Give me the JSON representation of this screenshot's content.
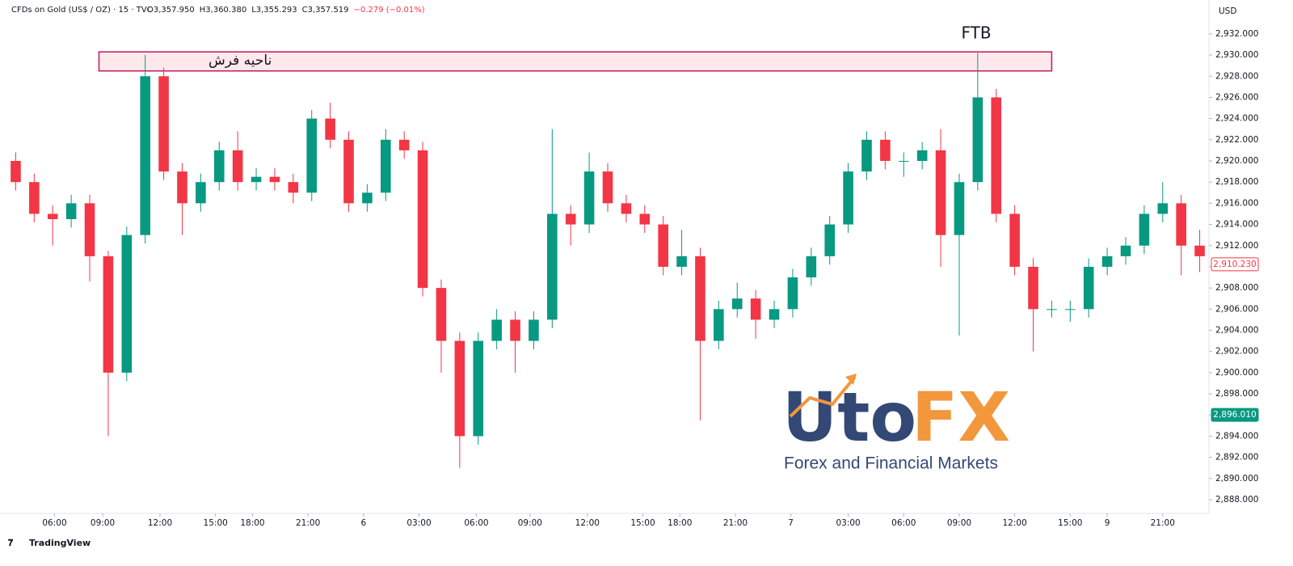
{
  "chart_data": {
    "type": "candlestick",
    "title": "CFDs on Gold (US$ / OZ) · 15 · TVC",
    "ohlc_header": [
      "O3,357.950",
      "H3,360.380",
      "L3,355.293",
      "C3,357.519",
      "−0.279 (−0.01%)"
    ],
    "y_unit": "USD",
    "up_color": "#089981",
    "down_color": "#f23645",
    "open": [
      2920,
      2918,
      2915,
      2914.5,
      2916,
      2911,
      2900,
      2913,
      2928,
      2919,
      2916,
      2918,
      2921,
      2918,
      2918.5,
      2918,
      2917,
      2924,
      2922,
      2916,
      2917,
      2922,
      2921,
      2908,
      2903,
      2894,
      2903,
      2905,
      2903,
      2905,
      2915,
      2914,
      2919,
      2916,
      2915,
      2914,
      2910,
      2911,
      2903,
      2906,
      2907,
      2905,
      2906,
      2909,
      2911,
      2914,
      2919,
      2922,
      2920,
      2920,
      2921,
      2913,
      2918,
      2926,
      2915,
      2910,
      2906,
      2906,
      2906,
      2910,
      2911,
      2912,
      2915,
      2916,
      2912
    ],
    "high": [
      2920.8,
      2918.8,
      2915.8,
      2916.8,
      2916.8,
      2911.5,
      2913.8,
      2930,
      2928.8,
      2919.8,
      2918.8,
      2921.8,
      2922.8,
      2919.3,
      2919.3,
      2918.8,
      2924.8,
      2925.5,
      2922.8,
      2917.8,
      2923,
      2922.8,
      2921.8,
      2908.8,
      2903.8,
      2903.8,
      2906,
      2905.8,
      2905.8,
      2923,
      2915.8,
      2920.8,
      2919.8,
      2916.8,
      2915.8,
      2914.8,
      2913.5,
      2911.8,
      2906.8,
      2908.5,
      2907.8,
      2906.8,
      2909.8,
      2911.8,
      2914.8,
      2919.8,
      2922.8,
      2922.8,
      2920.8,
      2921.8,
      2923,
      2918.8,
      2930.2,
      2926.8,
      2915.8,
      2910.8,
      2906.8,
      2906.8,
      2910.8,
      2911.8,
      2912.8,
      2915.8,
      2918,
      2916.8,
      2913.5
    ],
    "low": [
      2917.2,
      2914.2,
      2912,
      2913.7,
      2908.6,
      2894,
      2899.2,
      2912.2,
      2918.2,
      2913,
      2915.2,
      2917.2,
      2917.2,
      2917.2,
      2917.2,
      2916,
      2916.2,
      2921.2,
      2915.2,
      2915.2,
      2916.2,
      2920.2,
      2907.2,
      2900,
      2891,
      2893.2,
      2902.2,
      2900,
      2902.2,
      2904.2,
      2912,
      2913.2,
      2915.2,
      2914.2,
      2913.2,
      2909.2,
      2909.2,
      2895.5,
      2902.2,
      2905.2,
      2903.2,
      2904.2,
      2905.2,
      2908.2,
      2910.2,
      2913.2,
      2918.2,
      2919.2,
      2918.5,
      2919.2,
      2910,
      2903.5,
      2917.2,
      2914.2,
      2909.2,
      2902,
      2905.2,
      2904.8,
      2905.2,
      2909.2,
      2910.2,
      2911.2,
      2914.2,
      2909.2,
      2909.5
    ],
    "close": [
      2918,
      2915,
      2914.5,
      2916,
      2911,
      2900,
      2913,
      2928,
      2919,
      2916,
      2918,
      2921,
      2918,
      2918.5,
      2918,
      2917,
      2924,
      2922,
      2916,
      2917,
      2922,
      2921,
      2908,
      2903,
      2894,
      2903,
      2905,
      2903,
      2905,
      2915,
      2914,
      2919,
      2916,
      2915,
      2914,
      2910,
      2911,
      2903,
      2906,
      2907,
      2905,
      2906,
      2909,
      2911,
      2914,
      2919,
      2922,
      2920,
      2920,
      2921,
      2913,
      2918,
      2926,
      2915,
      2910,
      2906,
      2906,
      2906,
      2910,
      2911,
      2912,
      2915,
      2916,
      2912,
      2911
    ],
    "xlim": [
      0,
      65
    ],
    "xticks": [
      {
        "value": 2.6,
        "label": "06:00"
      },
      {
        "value": 5.2,
        "label": "09:00"
      },
      {
        "value": 8.3,
        "label": "12:00"
      },
      {
        "value": 11.3,
        "label": "15:00"
      },
      {
        "value": 13.3,
        "label": "18:00"
      },
      {
        "value": 16.3,
        "label": "21:00"
      },
      {
        "value": 19.3,
        "label": "6"
      },
      {
        "value": 22.3,
        "label": "03:00"
      },
      {
        "value": 25.4,
        "label": "06:00"
      },
      {
        "value": 28.3,
        "label": "09:00"
      },
      {
        "value": 31.4,
        "label": "12:00"
      },
      {
        "value": 34.4,
        "label": "15:00"
      },
      {
        "value": 36.4,
        "label": "18:00"
      },
      {
        "value": 39.4,
        "label": "21:00"
      },
      {
        "value": 42.4,
        "label": "7"
      },
      {
        "value": 45.5,
        "label": "03:00"
      },
      {
        "value": 48.5,
        "label": "06:00"
      },
      {
        "value": 51.5,
        "label": "09:00"
      },
      {
        "value": 54.5,
        "label": "12:00"
      },
      {
        "value": 57.5,
        "label": "15:00"
      },
      {
        "value": 59.5,
        "label": "9"
      },
      {
        "value": 62.5,
        "label": "21:00"
      }
    ],
    "ylim": [
      2886.7,
      2935.2
    ],
    "yticks": [
      {
        "value": 2888,
        "label": "2,888.000"
      },
      {
        "value": 2890,
        "label": "2,890.000"
      },
      {
        "value": 2892,
        "label": "2,892.000"
      },
      {
        "value": 2894,
        "label": "2,894.000"
      },
      {
        "value": 2896,
        "label": "2,896.000"
      },
      {
        "value": 2898,
        "label": "2,898.000"
      },
      {
        "value": 2900,
        "label": "2,900.000"
      },
      {
        "value": 2902,
        "label": "2,902.000"
      },
      {
        "value": 2904,
        "label": "2,904.000"
      },
      {
        "value": 2906,
        "label": "2,906.000"
      },
      {
        "value": 2908,
        "label": "2,908.000"
      },
      {
        "value": 2910,
        "label": "2,910.000"
      },
      {
        "value": 2912,
        "label": "2,912.000"
      },
      {
        "value": 2914,
        "label": "2,914.000"
      },
      {
        "value": 2916,
        "label": "2,916.000"
      },
      {
        "value": 2918,
        "label": "2,918.000"
      },
      {
        "value": 2920,
        "label": "2,920.000"
      },
      {
        "value": 2922,
        "label": "2,922.000"
      },
      {
        "value": 2924,
        "label": "2,924.000"
      },
      {
        "value": 2926,
        "label": "2,926.000"
      },
      {
        "value": 2928,
        "label": "2,928.000"
      },
      {
        "value": 2930,
        "label": "2,930.000"
      },
      {
        "value": 2932,
        "label": "2,932.000"
      }
    ],
    "zone": {
      "label": "ناحیه فرش",
      "from": 2928.5,
      "to": 2930.3,
      "color": "#c2185b"
    },
    "annotation": "FTB",
    "price_labels": [
      {
        "value": 2910.23,
        "label": "2,910.230",
        "color": "#f23645"
      },
      {
        "value": 2896.01,
        "label": "2,896.010",
        "color": "#089981"
      }
    ],
    "watermark": {
      "text": [
        "Uto",
        "FX"
      ],
      "tagline": "Forex and Financial Markets"
    },
    "source": "TradingView"
  }
}
